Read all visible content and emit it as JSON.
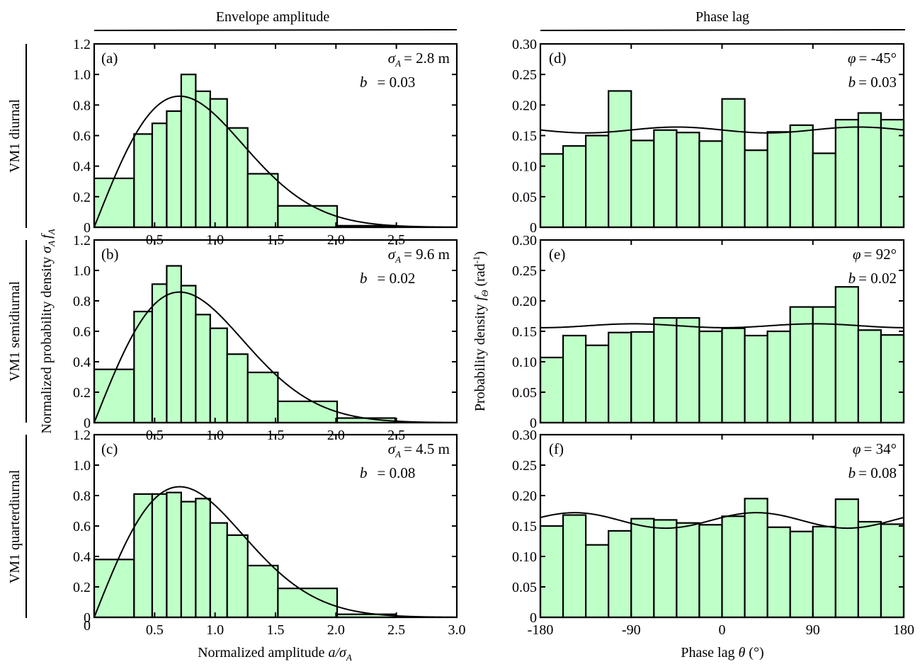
{
  "headers": {
    "left": "Envelope amplitude",
    "right": "Phase lag"
  },
  "row_labels": [
    "VM1 diurnal",
    "VM1 semidiurnal",
    "VM1 quarterdiurnal"
  ],
  "chart_data": [
    {
      "id": "a",
      "type": "bar",
      "panel_label": "(a)",
      "annotation": {
        "line1_symbol": "σ",
        "line1_sub": "A",
        "line1_value": "= 2.8 m",
        "line2_symbol": "b",
        "line2_value": "= 0.03"
      },
      "bin_edges": [
        0,
        0.33,
        0.48,
        0.6,
        0.72,
        0.84,
        0.96,
        1.1,
        1.27,
        1.52,
        2.01,
        2.49
      ],
      "values": [
        0.32,
        0.61,
        0.68,
        0.76,
        1.0,
        0.89,
        0.84,
        0.65,
        0.35,
        0.14,
        0.01
      ],
      "fit": {
        "type": "rayleigh",
        "peak_x": 0.707
      },
      "xlim": [
        0,
        3.0
      ],
      "ylim": [
        0,
        1.2
      ],
      "xticks": [
        0.5,
        1.0,
        1.5,
        2.0,
        2.5
      ],
      "xtick_labels": [
        "0.5",
        "1.0",
        "1.5",
        "2.0",
        "2.5"
      ],
      "yticks": [
        0,
        0.2,
        0.4,
        0.6,
        0.8,
        1.0,
        1.2
      ],
      "ytick_labels": [
        "0",
        "0.2",
        "0.4",
        "0.6",
        "0.8",
        "1.0",
        "1.2"
      ]
    },
    {
      "id": "b",
      "type": "bar",
      "panel_label": "(b)",
      "annotation": {
        "line1_symbol": "σ",
        "line1_sub": "A",
        "line1_value": "= 9.6 m",
        "line2_symbol": "b",
        "line2_value": "= 0.02"
      },
      "bin_edges": [
        0,
        0.33,
        0.48,
        0.6,
        0.72,
        0.84,
        0.96,
        1.1,
        1.27,
        1.52,
        2.01,
        2.49
      ],
      "values": [
        0.35,
        0.73,
        0.91,
        1.03,
        0.9,
        0.71,
        0.62,
        0.45,
        0.33,
        0.14,
        0.03
      ],
      "fit": {
        "type": "rayleigh",
        "peak_x": 0.707
      },
      "xlim": [
        0,
        3.0
      ],
      "ylim": [
        0,
        1.2
      ],
      "xticks": [
        0.5,
        1.0,
        1.5,
        2.0,
        2.5
      ],
      "xtick_labels": [
        "0.5",
        "1.0",
        "1.5",
        "2.0",
        "2.5"
      ],
      "yticks": [
        0,
        0.2,
        0.4,
        0.6,
        0.8,
        1.0,
        1.2
      ],
      "ytick_labels": [
        "0",
        "0.2",
        "0.4",
        "0.6",
        "0.8",
        "1.0",
        "1.2"
      ]
    },
    {
      "id": "c",
      "type": "bar",
      "panel_label": "(c)",
      "annotation": {
        "line1_symbol": "σ",
        "line1_sub": "A",
        "line1_value": "= 4.5 m",
        "line2_symbol": "b",
        "line2_value": "= 0.08"
      },
      "bin_edges": [
        0,
        0.33,
        0.48,
        0.6,
        0.72,
        0.84,
        0.96,
        1.1,
        1.27,
        1.52,
        2.01,
        2.49
      ],
      "values": [
        0.38,
        0.81,
        0.81,
        0.82,
        0.76,
        0.78,
        0.62,
        0.54,
        0.34,
        0.19,
        0.02
      ],
      "fit": {
        "type": "rayleigh",
        "peak_x": 0.707
      },
      "xlim": [
        0,
        3.0
      ],
      "ylim": [
        0,
        1.2
      ],
      "xticks": [
        0.5,
        1.0,
        1.5,
        2.0,
        2.5
      ],
      "xtick_labels": [
        "0.5",
        "1.0",
        "1.5",
        "2.0",
        "2.5"
      ],
      "x_extra_labels": [
        "0",
        "3.0"
      ],
      "yticks": [
        0,
        0.2,
        0.4,
        0.6,
        0.8,
        1.0,
        1.2
      ],
      "ytick_labels": [
        "0",
        "0.2",
        "0.4",
        "0.6",
        "0.8",
        "1.0",
        "1.2"
      ],
      "xlabel_text": "Normalized amplitude ",
      "xlabel_math": "a/σ",
      "xlabel_sub": "A"
    },
    {
      "id": "d",
      "type": "bar",
      "panel_label": "(d)",
      "annotation": {
        "line1_symbol": "φ",
        "line1_value": "= -45°",
        "line2_symbol": "b",
        "line2_value": "= 0.03"
      },
      "bin_edges": [
        -180,
        -157.5,
        -135,
        -112.5,
        -90,
        -67.5,
        -45,
        -22.5,
        0,
        22.5,
        45,
        67.5,
        90,
        112.5,
        135,
        157.5,
        180
      ],
      "values": [
        0.12,
        0.133,
        0.15,
        0.223,
        0.142,
        0.159,
        0.155,
        0.141,
        0.21,
        0.126,
        0.156,
        0.167,
        0.121,
        0.176,
        0.187,
        0.176
      ],
      "fit": {
        "type": "cosine",
        "phi_deg": -45,
        "b": 0.03
      },
      "xlim": [
        -180,
        180
      ],
      "ylim": [
        0,
        0.3
      ],
      "xticks": [
        -90,
        0,
        90
      ],
      "yticks": [
        0,
        0.05,
        0.1,
        0.15,
        0.2,
        0.25,
        0.3
      ],
      "ytick_labels": [
        "0",
        "0.05",
        "0.10",
        "0.15",
        "0.20",
        "0.25",
        "0.30"
      ]
    },
    {
      "id": "e",
      "type": "bar",
      "panel_label": "(e)",
      "annotation": {
        "line1_symbol": "φ",
        "line1_value": "= 92°",
        "line2_symbol": "b",
        "line2_value": "= 0.02"
      },
      "bin_edges": [
        -180,
        -157.5,
        -135,
        -112.5,
        -90,
        -67.5,
        -45,
        -22.5,
        0,
        22.5,
        45,
        67.5,
        90,
        112.5,
        135,
        157.5,
        180
      ],
      "values": [
        0.107,
        0.143,
        0.127,
        0.148,
        0.149,
        0.172,
        0.172,
        0.15,
        0.155,
        0.143,
        0.15,
        0.19,
        0.19,
        0.223,
        0.152,
        0.144
      ],
      "fit": {
        "type": "cosine",
        "phi_deg": 92,
        "b": 0.02
      },
      "xlim": [
        -180,
        180
      ],
      "ylim": [
        0,
        0.3
      ],
      "xticks": [
        -90,
        0,
        90
      ],
      "yticks": [
        0,
        0.05,
        0.1,
        0.15,
        0.2,
        0.25,
        0.3
      ],
      "ytick_labels": [
        "0",
        "0.05",
        "0.10",
        "0.15",
        "0.20",
        "0.25",
        "0.30"
      ]
    },
    {
      "id": "f",
      "type": "bar",
      "panel_label": "(f)",
      "annotation": {
        "line1_symbol": "φ",
        "line1_value": "= 34°",
        "line2_symbol": "b",
        "line2_value": "= 0.08"
      },
      "bin_edges": [
        -180,
        -157.5,
        -135,
        -112.5,
        -90,
        -67.5,
        -45,
        -22.5,
        0,
        22.5,
        45,
        67.5,
        90,
        112.5,
        135,
        157.5,
        180
      ],
      "values": [
        0.15,
        0.168,
        0.119,
        0.142,
        0.162,
        0.16,
        0.155,
        0.152,
        0.166,
        0.195,
        0.148,
        0.141,
        0.149,
        0.194,
        0.157,
        0.153
      ],
      "fit": {
        "type": "cosine",
        "phi_deg": 34,
        "b": 0.08
      },
      "xlim": [
        -180,
        180
      ],
      "ylim": [
        0,
        0.3
      ],
      "xticks": [
        -180,
        -90,
        0,
        90,
        180
      ],
      "xtick_labels": [
        "-180",
        "-90",
        "0",
        "90",
        "180"
      ],
      "yticks": [
        0,
        0.05,
        0.1,
        0.15,
        0.2,
        0.25,
        0.3
      ],
      "ytick_labels": [
        "0",
        "0.05",
        "0.10",
        "0.15",
        "0.20",
        "0.25",
        "0.30"
      ],
      "xlabel_text": "Phase lag ",
      "xlabel_math": "θ",
      "xlabel_tail": "  (°)"
    }
  ],
  "ylabels": {
    "left_text": "Normalized probability density  ",
    "left_math": "σ",
    "left_sub": "A",
    "left_math2": "f",
    "left_sub2": "A",
    "right_text": "Probability density ",
    "right_math": "f",
    "right_sub": "Θ",
    "right_tail": "  (rad",
    "right_sup": "-1",
    "right_close": ")"
  },
  "style": {
    "bar_fill": "#bfffc8",
    "bar_stroke": "#000000",
    "curve_color": "#000000"
  }
}
